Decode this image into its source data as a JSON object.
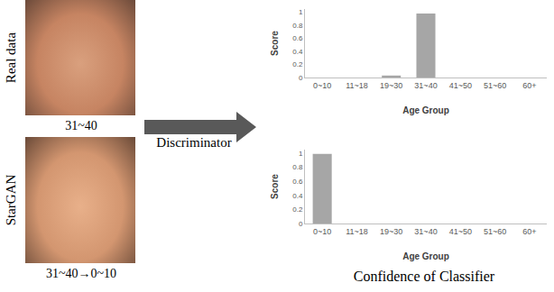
{
  "figure": {
    "rows": [
      {
        "label": "Real data",
        "caption": "31~40"
      },
      {
        "label": "StarGAN",
        "caption": "31~40→0~10"
      }
    ],
    "arrow_label": "Discriminator",
    "caption": "Confidence of Classifier"
  },
  "chart_data": [
    {
      "type": "bar",
      "x_label": "Age Group",
      "y_label": "Score",
      "categories": [
        "0~10",
        "11~18",
        "19~30",
        "31~40",
        "41~50",
        "51~60",
        "60+"
      ],
      "values": [
        0,
        0,
        0.03,
        0.98,
        0,
        0,
        0
      ],
      "color": "#a6a6a6",
      "ylim": [
        0,
        1.05
      ],
      "yticks": [
        0,
        0.2,
        0.4,
        0.6,
        0.8,
        1
      ],
      "grid": false
    },
    {
      "type": "bar",
      "x_label": "Age Group",
      "y_label": "Score",
      "categories": [
        "0~10",
        "11~18",
        "19~30",
        "31~40",
        "41~50",
        "51~60",
        "60+"
      ],
      "values": [
        0.99,
        0,
        0,
        0,
        0,
        0,
        0
      ],
      "color": "#a6a6a6",
      "ylim": [
        0,
        1.05
      ],
      "yticks": [
        0,
        0.2,
        0.4,
        0.6,
        0.8,
        1
      ],
      "grid": false
    }
  ]
}
